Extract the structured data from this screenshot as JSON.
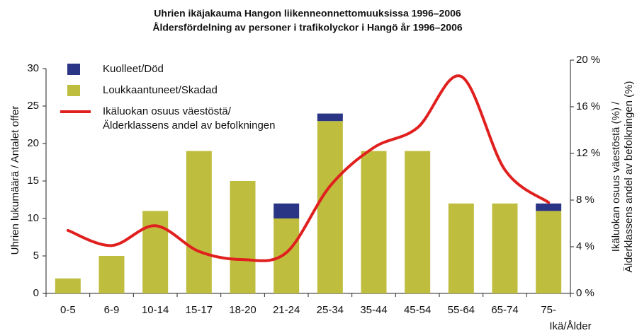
{
  "chart_data": {
    "type": "bar",
    "stacked": true,
    "title": [
      "Uhrien ikäjakauma Hangon liikenneonnettomuuksissa 1996–2006",
      "Åldersfördelning av personer i trafikolyckor i Hangö år 1996–2006"
    ],
    "x_label": "Ikä/Ålder",
    "y_label": "Uhrien lukumäärä / Antalet offer",
    "y2_label": [
      "Ikäluokan osuus väestöstä (%) /",
      "Älderklassens andel av befolkningen (%)"
    ],
    "categories": [
      "0-5",
      "6-9",
      "10-14",
      "15-17",
      "18-20",
      "21-24",
      "25-34",
      "35-44",
      "45-54",
      "55-64",
      "65-74",
      "75-"
    ],
    "series": [
      {
        "name": "Kuolleet/Död",
        "color": "#2b3585",
        "values": [
          0,
          0,
          0,
          0,
          0,
          2,
          1,
          0,
          0,
          0,
          0,
          1
        ]
      },
      {
        "name": "Loukkaantuneet/Skadad",
        "color": "#bfbd3e",
        "values": [
          2,
          5,
          11,
          19,
          15,
          10,
          23,
          19,
          19,
          12,
          12,
          11
        ]
      },
      {
        "name": [
          "Ikäluokan osuus väestöstä/",
          "Älderklassens andel av befolkningen"
        ],
        "type": "line",
        "axis": "y2",
        "color": "#e0201e",
        "values": [
          5.4,
          4.1,
          5.8,
          3.6,
          2.9,
          3.5,
          9.2,
          12.5,
          14.2,
          18.6,
          10.6,
          7.8
        ]
      }
    ],
    "ylim": [
      0,
      30
    ],
    "yticks": [
      0,
      5,
      10,
      15,
      20,
      25,
      30
    ],
    "y2lim": [
      0,
      20
    ],
    "y2ticks": [
      {
        "value": 0,
        "label": "0 %"
      },
      {
        "value": 4,
        "label": "4 %"
      },
      {
        "value": 8,
        "label": "8 %"
      },
      {
        "value": 12,
        "label": "12 %"
      },
      {
        "value": 16,
        "label": "16 %"
      },
      {
        "value": 20,
        "label": "20 %"
      }
    ],
    "legend": "upper left",
    "grid": false
  }
}
